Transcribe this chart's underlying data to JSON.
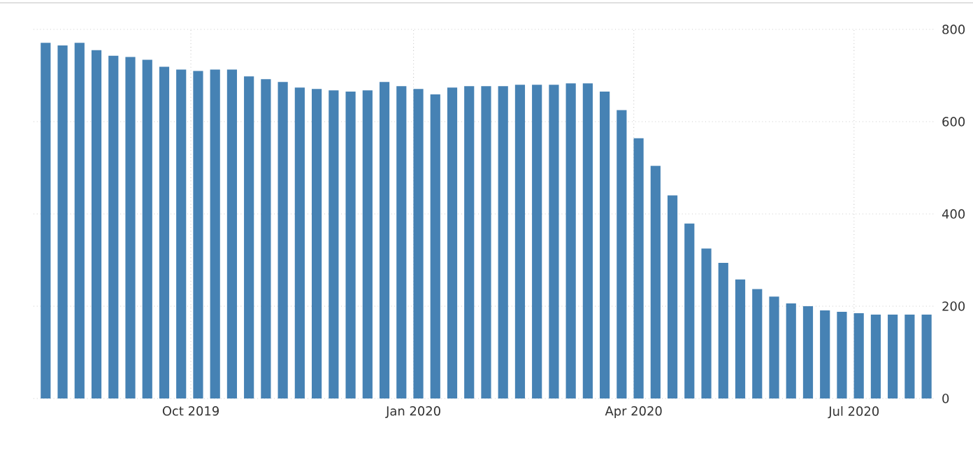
{
  "chart_data": {
    "type": "bar",
    "color": "#4682b4",
    "x": [
      "2019-08-02",
      "2019-08-09",
      "2019-08-16",
      "2019-08-23",
      "2019-08-30",
      "2019-09-06",
      "2019-09-13",
      "2019-09-20",
      "2019-09-27",
      "2019-10-04",
      "2019-10-11",
      "2019-10-18",
      "2019-10-25",
      "2019-11-01",
      "2019-11-08",
      "2019-11-15",
      "2019-11-22",
      "2019-11-29",
      "2019-12-06",
      "2019-12-13",
      "2019-12-20",
      "2019-12-27",
      "2020-01-03",
      "2020-01-10",
      "2020-01-17",
      "2020-01-24",
      "2020-01-31",
      "2020-02-07",
      "2020-02-14",
      "2020-02-21",
      "2020-02-28",
      "2020-03-06",
      "2020-03-13",
      "2020-03-20",
      "2020-03-27",
      "2020-04-03",
      "2020-04-10",
      "2020-04-17",
      "2020-04-24",
      "2020-05-01",
      "2020-05-08",
      "2020-05-15",
      "2020-05-22",
      "2020-05-29",
      "2020-06-05",
      "2020-06-12",
      "2020-06-19",
      "2020-06-26",
      "2020-07-03",
      "2020-07-10",
      "2020-07-17",
      "2020-07-24",
      "2020-07-31"
    ],
    "values": [
      771,
      765,
      771,
      755,
      743,
      740,
      734,
      719,
      713,
      710,
      713,
      713,
      698,
      692,
      686,
      674,
      671,
      668,
      665,
      668,
      686,
      677,
      671,
      659,
      674,
      677,
      677,
      677,
      680,
      680,
      680,
      683,
      683,
      665,
      625,
      564,
      504,
      440,
      379,
      325,
      294,
      258,
      237,
      221,
      206,
      200,
      191,
      188,
      185,
      182,
      182,
      182,
      182
    ],
    "xlim": [
      "2019-07-28",
      "2020-08-03"
    ],
    "xticks": [
      {
        "value": "2019-10-01",
        "label": "Oct 2019"
      },
      {
        "value": "2020-01-01",
        "label": "Jan 2020"
      },
      {
        "value": "2020-04-01",
        "label": "Apr 2020"
      },
      {
        "value": "2020-07-01",
        "label": "Jul 2020"
      }
    ],
    "ylim": [
      0,
      800
    ],
    "yticks": [
      0,
      200,
      400,
      600,
      800
    ],
    "grid": true
  }
}
